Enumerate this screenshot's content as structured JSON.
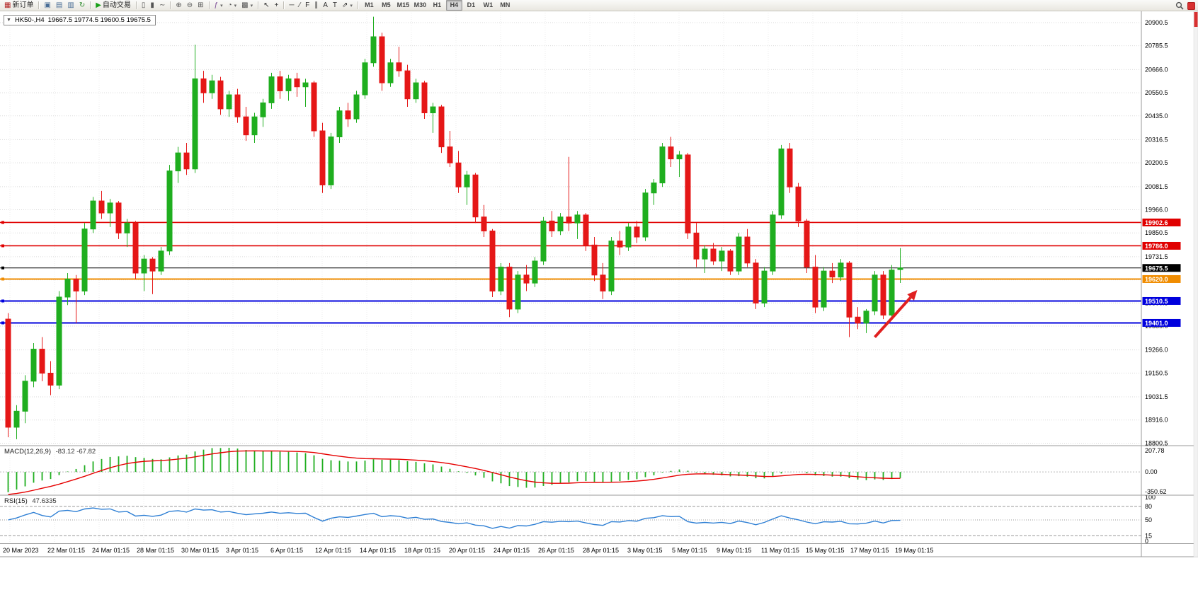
{
  "toolbar": {
    "items": [
      {
        "name": "new-order-button",
        "icon": "new-order-icon",
        "glyph": "▦",
        "glyph_color": "#b22222",
        "label": "新订单"
      },
      {
        "type": "sep"
      },
      {
        "name": "charts-button",
        "icon": "chart-window-icon",
        "glyph": "▣",
        "glyph_color": "#4a6e96"
      },
      {
        "name": "profiles-button",
        "icon": "profiles-icon",
        "glyph": "▤",
        "glyph_color": "#4a6e96"
      },
      {
        "name": "market-watch-button",
        "icon": "market-watch-icon",
        "glyph": "▥",
        "glyph_color": "#4a6e96"
      },
      {
        "name": "refresh-button",
        "icon": "refresh-icon",
        "glyph": "↻",
        "glyph_color": "#2e8b2e"
      },
      {
        "type": "sep"
      },
      {
        "name": "autotrading-button",
        "icon": "autotrading-play-icon",
        "glyph": "▶",
        "glyph_color": "#18a018",
        "label": "自动交易"
      },
      {
        "type": "sep"
      },
      {
        "name": "bars-chart-button",
        "icon": "bars-chart-icon",
        "glyph": "▯",
        "glyph_color": "#555555"
      },
      {
        "name": "candlestick-chart-button",
        "icon": "candlestick-chart-icon",
        "glyph": "▮",
        "glyph_color": "#555555"
      },
      {
        "name": "line-chart-button",
        "icon": "line-chart-icon",
        "glyph": "∼",
        "glyph_color": "#555555"
      },
      {
        "type": "sep"
      },
      {
        "name": "zoom-in-button",
        "icon": "zoom-in-icon",
        "glyph": "⊕",
        "glyph_color": "#555555"
      },
      {
        "name": "zoom-out-button",
        "icon": "zoom-out-icon",
        "glyph": "⊖",
        "glyph_color": "#555555"
      },
      {
        "name": "tile-windows-button",
        "icon": "tile-windows-icon",
        "glyph": "⊞",
        "glyph_color": "#555555"
      },
      {
        "type": "sep"
      },
      {
        "name": "indicators-button",
        "icon": "indicators-icon",
        "glyph": "ƒ",
        "glyph_color": "#7a4a96",
        "dropdown": true
      },
      {
        "name": "periods-button",
        "icon": "clock-icon",
        "glyph": "◔",
        "glyph_color": "#555555",
        "dropdown": true
      },
      {
        "name": "templates-button",
        "icon": "templates-icon",
        "glyph": "▩",
        "glyph_color": "#555555",
        "dropdown": true
      },
      {
        "type": "sep"
      },
      {
        "name": "cursor-button",
        "icon": "cursor-icon",
        "glyph": "↖",
        "glyph_color": "#333333"
      },
      {
        "name": "crosshair-button",
        "icon": "crosshair-icon",
        "glyph": "+",
        "glyph_color": "#333333"
      },
      {
        "type": "sep"
      },
      {
        "name": "hline-button",
        "icon": "horizontal-line-icon",
        "glyph": "─",
        "glyph_color": "#333333"
      },
      {
        "name": "trendline-button",
        "icon": "trendline-icon",
        "glyph": "∕",
        "glyph_color": "#333333"
      },
      {
        "name": "fibonacci-button",
        "icon": "fibonacci-icon",
        "glyph": "F",
        "glyph_color": "#333333"
      },
      {
        "name": "channel-button",
        "icon": "channel-icon",
        "glyph": "∥",
        "glyph_color": "#333333"
      },
      {
        "name": "text-button",
        "icon": "text-icon",
        "glyph": "A",
        "glyph_color": "#333333"
      },
      {
        "name": "label-button",
        "icon": "label-icon",
        "glyph": "T",
        "glyph_color": "#333333"
      },
      {
        "name": "arrows-button",
        "icon": "arrow-tool-icon",
        "glyph": "⇗",
        "glyph_color": "#333333",
        "dropdown": true
      },
      {
        "type": "sep"
      }
    ],
    "timeframes": {
      "items": [
        "M1",
        "M5",
        "M15",
        "M30",
        "H1",
        "H4",
        "D1",
        "W1",
        "MN"
      ],
      "active": "H4"
    }
  },
  "chart_header": {
    "collapse_icon": "▼",
    "symbol": "HK50-,H4",
    "ohlc": "19667.5 19774.5 19600.5 19675.5"
  },
  "chart_data": {
    "type": "candlestick",
    "symbol": "HK50-",
    "timeframe": "H4",
    "current_price": 19675.5,
    "up_color": "#1fae1f",
    "down_color": "#e51717",
    "y_axis": {
      "visible_labels": [
        "20900.5",
        "20785.5",
        "20666.0",
        "20550.5",
        "20435.0",
        "20316.5",
        "20200.5",
        "20081.5",
        "19966.0",
        "19850.5",
        "19731.5",
        "19266.0",
        "19150.5",
        "19031.5",
        "18916.0",
        "18800.5"
      ],
      "grid_prices": [
        20900.5,
        20785.5,
        20666.0,
        20550.5,
        20435.0,
        20316.5,
        20200.5,
        20081.5,
        19966.0,
        19850.5,
        19731.5,
        19616.0,
        19500.5,
        19385.0,
        19266.0,
        19150.5,
        19031.5,
        18916.0,
        18800.5
      ]
    },
    "x_labels": [
      "20 Mar 2023",
      "22 Mar 01:15",
      "24 Mar 01:15",
      "28 Mar 01:15",
      "30 Mar 01:15",
      "3 Apr 01:15",
      "6 Apr 01:15",
      "12 Apr 01:15",
      "14 Apr 01:15",
      "18 Apr 01:15",
      "20 Apr 01:15",
      "24 Apr 01:15",
      "26 Apr 01:15",
      "28 Apr 01:15",
      "3 May 01:15",
      "5 May 01:15",
      "9 May 01:15",
      "11 May 01:15",
      "15 May 01:15",
      "17 May 01:15",
      "19 May 01:15"
    ],
    "levels": [
      {
        "price": 19902.6,
        "label": "19902.6",
        "color": "#e00000",
        "width": 1.6,
        "kind": "resistance"
      },
      {
        "price": 19786.0,
        "label": "19786.0",
        "color": "#e00000",
        "width": 1.6,
        "kind": "resistance"
      },
      {
        "price": 19675.5,
        "label": "19675.5",
        "color": "#000000",
        "width": 1,
        "kind": "current-price"
      },
      {
        "price": 19620.0,
        "label": "19620.0",
        "color": "#f08c00",
        "width": 2,
        "kind": "support"
      },
      {
        "price": 19510.5,
        "label": "19510.5",
        "color": "#0000dd",
        "width": 2,
        "kind": "support"
      },
      {
        "price": 19401.0,
        "label": "19401.0",
        "color": "#0000dd",
        "width": 2,
        "kind": "support"
      }
    ],
    "arrow_annotation": {
      "from_x_index": 102,
      "from_price": 19330,
      "to_x_index": 107,
      "to_price": 19565,
      "color": "#e02020"
    },
    "candles": [
      [
        19420,
        19450,
        18830,
        18880
      ],
      [
        18880,
        18990,
        18820,
        18960
      ],
      [
        18960,
        19140,
        18900,
        19110
      ],
      [
        19110,
        19300,
        19080,
        19270
      ],
      [
        19270,
        19330,
        19110,
        19150
      ],
      [
        19150,
        19210,
        19040,
        19090
      ],
      [
        19090,
        19560,
        19070,
        19530
      ],
      [
        19530,
        19650,
        19490,
        19620
      ],
      [
        19620,
        19640,
        19400,
        19560
      ],
      [
        19560,
        19900,
        19540,
        19870
      ],
      [
        19870,
        20030,
        19850,
        20010
      ],
      [
        20010,
        20060,
        19920,
        19950
      ],
      [
        19950,
        20020,
        19880,
        20000
      ],
      [
        20000,
        20010,
        19820,
        19850
      ],
      [
        19850,
        19920,
        19780,
        19900
      ],
      [
        19900,
        19910,
        19620,
        19650
      ],
      [
        19650,
        19740,
        19560,
        19720
      ],
      [
        19720,
        19730,
        19545,
        19660
      ],
      [
        19660,
        19780,
        19640,
        19760
      ],
      [
        19760,
        20190,
        19740,
        20160
      ],
      [
        20160,
        20280,
        20100,
        20250
      ],
      [
        20250,
        20300,
        20140,
        20170
      ],
      [
        20170,
        20790,
        20150,
        20620
      ],
      [
        20620,
        20660,
        20500,
        20550
      ],
      [
        20550,
        20640,
        20520,
        20610
      ],
      [
        20610,
        20630,
        20440,
        20470
      ],
      [
        20470,
        20560,
        20430,
        20540
      ],
      [
        20540,
        20570,
        20400,
        20430
      ],
      [
        20430,
        20480,
        20310,
        20340
      ],
      [
        20340,
        20450,
        20300,
        20430
      ],
      [
        20430,
        20520,
        20380,
        20500
      ],
      [
        20500,
        20650,
        20470,
        20630
      ],
      [
        20630,
        20660,
        20520,
        20560
      ],
      [
        20560,
        20640,
        20510,
        20620
      ],
      [
        20620,
        20650,
        20530,
        20580
      ],
      [
        20580,
        20620,
        20480,
        20600
      ],
      [
        20600,
        20610,
        20330,
        20360
      ],
      [
        20360,
        20400,
        20050,
        20090
      ],
      [
        20090,
        20350,
        20070,
        20330
      ],
      [
        20330,
        20480,
        20300,
        20460
      ],
      [
        20460,
        20500,
        20380,
        20420
      ],
      [
        20420,
        20560,
        20400,
        20540
      ],
      [
        20540,
        20720,
        20520,
        20700
      ],
      [
        20700,
        20930,
        20680,
        20830
      ],
      [
        20830,
        20850,
        20560,
        20600
      ],
      [
        20600,
        20720,
        20580,
        20700
      ],
      [
        20700,
        20780,
        20630,
        20660
      ],
      [
        20660,
        20690,
        20480,
        20520
      ],
      [
        20520,
        20620,
        20500,
        20600
      ],
      [
        20600,
        20610,
        20420,
        20450
      ],
      [
        20450,
        20500,
        20350,
        20480
      ],
      [
        20480,
        20490,
        20250,
        20280
      ],
      [
        20280,
        20360,
        20180,
        20200
      ],
      [
        20200,
        20260,
        20050,
        20080
      ],
      [
        20080,
        20160,
        19990,
        20140
      ],
      [
        20140,
        20150,
        19900,
        19930
      ],
      [
        19930,
        19990,
        19830,
        19860
      ],
      [
        19860,
        19870,
        19530,
        19560
      ],
      [
        19560,
        19700,
        19540,
        19680
      ],
      [
        19680,
        19700,
        19430,
        19470
      ],
      [
        19470,
        19660,
        19450,
        19640
      ],
      [
        19640,
        19690,
        19560,
        19600
      ],
      [
        19600,
        19730,
        19580,
        19710
      ],
      [
        19710,
        19930,
        19690,
        19910
      ],
      [
        19910,
        19960,
        19830,
        19860
      ],
      [
        19860,
        19950,
        19840,
        19930
      ],
      [
        19930,
        20230,
        19860,
        19900
      ],
      [
        19900,
        19960,
        19820,
        19940
      ],
      [
        19940,
        19950,
        19760,
        19790
      ],
      [
        19790,
        19830,
        19610,
        19640
      ],
      [
        19640,
        19700,
        19520,
        19560
      ],
      [
        19560,
        19830,
        19540,
        19810
      ],
      [
        19810,
        19860,
        19740,
        19780
      ],
      [
        19780,
        19900,
        19760,
        19880
      ],
      [
        19880,
        19910,
        19800,
        19830
      ],
      [
        19830,
        20070,
        19810,
        20050
      ],
      [
        20050,
        20120,
        19990,
        20100
      ],
      [
        20100,
        20300,
        20080,
        20280
      ],
      [
        20280,
        20330,
        20180,
        20220
      ],
      [
        20220,
        20260,
        20130,
        20240
      ],
      [
        20240,
        20250,
        19820,
        19850
      ],
      [
        19850,
        19900,
        19680,
        19720
      ],
      [
        19720,
        19790,
        19650,
        19770
      ],
      [
        19770,
        19800,
        19690,
        19710
      ],
      [
        19710,
        19780,
        19660,
        19760
      ],
      [
        19760,
        19770,
        19640,
        19660
      ],
      [
        19660,
        19850,
        19640,
        19830
      ],
      [
        19830,
        19870,
        19680,
        19700
      ],
      [
        19700,
        19720,
        19470,
        19500
      ],
      [
        19500,
        19680,
        19480,
        19660
      ],
      [
        19660,
        19960,
        19640,
        19940
      ],
      [
        19940,
        20290,
        19920,
        20270
      ],
      [
        20270,
        20300,
        20050,
        20080
      ],
      [
        20080,
        20100,
        19880,
        19910
      ],
      [
        19910,
        19920,
        19650,
        19680
      ],
      [
        19680,
        19740,
        19450,
        19480
      ],
      [
        19480,
        19680,
        19460,
        19660
      ],
      [
        19660,
        19700,
        19600,
        19630
      ],
      [
        19630,
        19720,
        19610,
        19700
      ],
      [
        19700,
        19710,
        19330,
        19430
      ],
      [
        19430,
        19480,
        19370,
        19400
      ],
      [
        19400,
        19470,
        19350,
        19460
      ],
      [
        19460,
        19660,
        19440,
        19640
      ],
      [
        19640,
        19660,
        19420,
        19440
      ],
      [
        19440,
        19690,
        19430,
        19665
      ],
      [
        19667.5,
        19774.5,
        19600.5,
        19675.5
      ]
    ],
    "indicators": [
      {
        "type": "macd",
        "label": "MACD(12,26,9)",
        "params": [
          12,
          26,
          9
        ],
        "values_text": "-83.12 -67.82",
        "value": -83.12,
        "signal_value": -67.82,
        "scale_labels": [
          "207.78",
          "0.00",
          "-350.62"
        ],
        "histogram_color": "#1fae1f",
        "signal_color": "#e60000"
      },
      {
        "type": "rsi",
        "label": "RSI(15)",
        "period": 15,
        "value_text": "47.6335",
        "value": 47.6335,
        "levels": [
          80,
          50,
          15
        ],
        "scale_labels": [
          "100",
          "80",
          "50",
          "15",
          "0"
        ],
        "line_color": "#2e7fd4"
      }
    ]
  },
  "colors": {
    "grid": "#d9d9d9",
    "axis_text": "#000000",
    "separator": "#9a9a9a",
    "scroll_marker": "#d83030"
  }
}
